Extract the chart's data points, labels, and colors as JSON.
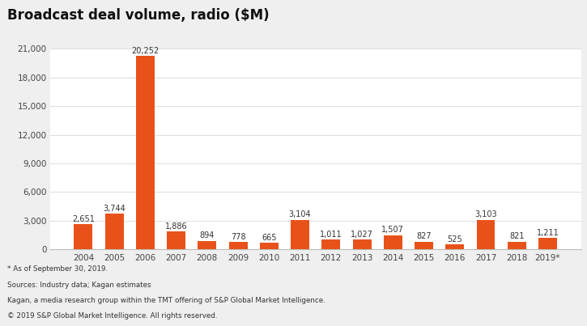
{
  "title": "Broadcast deal volume, radio ($M)",
  "categories": [
    "2004",
    "2005",
    "2006",
    "2007",
    "2008",
    "2009",
    "2010",
    "2011",
    "2012",
    "2013",
    "2014",
    "2015",
    "2016",
    "2017",
    "2018",
    "2019*"
  ],
  "values": [
    2651,
    3744,
    20252,
    1886,
    894,
    778,
    665,
    3104,
    1011,
    1027,
    1507,
    827,
    525,
    3103,
    821,
    1211
  ],
  "bar_color": "#E8521A",
  "background_color": "#EFEFEF",
  "plot_bg_color": "#FFFFFF",
  "ylim": [
    0,
    21000
  ],
  "yticks": [
    0,
    3000,
    6000,
    9000,
    12000,
    15000,
    18000,
    21000
  ],
  "title_fontsize": 12,
  "tick_fontsize": 7.5,
  "label_fontsize": 7.0,
  "footnote_lines": [
    "* As of September 30, 2019.",
    "Sources: Industry data; Kagan estimates",
    "Kagan, a media research group within the TMT offering of S&P Global Market Intelligence.",
    "© 2019 S&P Global Market Intelligence. All rights reserved."
  ]
}
